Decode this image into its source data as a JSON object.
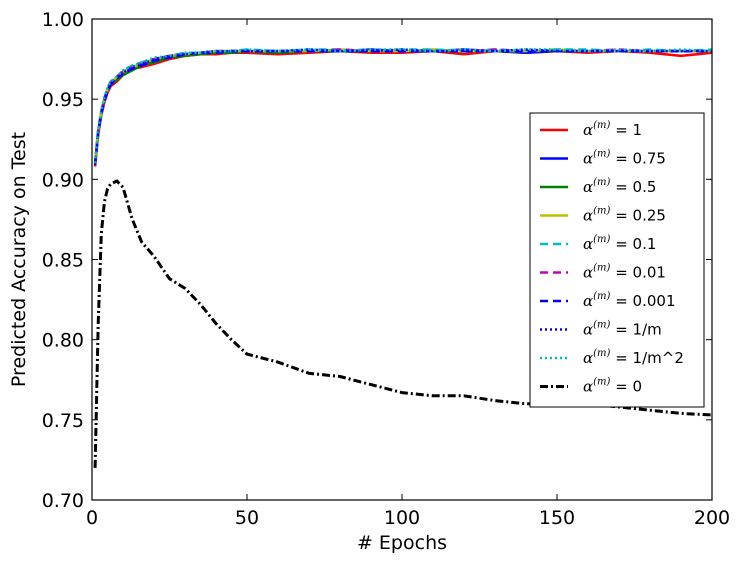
{
  "chart_data": {
    "type": "line",
    "title": "",
    "xlabel": "# Epochs",
    "ylabel": "Predicted Accuracy on Test",
    "xlim": [
      0,
      200
    ],
    "ylim": [
      0.7,
      1.0
    ],
    "xticks": [
      0,
      50,
      100,
      150,
      200
    ],
    "xtick_labels": [
      "0",
      "50",
      "100",
      "150",
      "200"
    ],
    "yticks": [
      0.7,
      0.75,
      0.8,
      0.85,
      0.9,
      0.95,
      1.0
    ],
    "ytick_labels": [
      "0.70",
      "0.75",
      "0.80",
      "0.85",
      "0.90",
      "0.95",
      "1.00"
    ],
    "grid": false,
    "legend_position": "center-right",
    "x": [
      1,
      2,
      3,
      4,
      5,
      6,
      8,
      10,
      13,
      16,
      20,
      25,
      30,
      35,
      40,
      45,
      50,
      60,
      70,
      80,
      90,
      100,
      110,
      120,
      130,
      140,
      150,
      160,
      170,
      180,
      190,
      200
    ],
    "series": [
      {
        "name": "α^(m) = 1",
        "label_pre": "α",
        "label_sup": "(m)",
        "label_post": " = 1",
        "color": "#ff0000",
        "dash": "",
        "width": 2.5,
        "values": [
          0.908,
          0.928,
          0.94,
          0.948,
          0.954,
          0.958,
          0.961,
          0.965,
          0.969,
          0.97,
          0.972,
          0.975,
          0.977,
          0.978,
          0.978,
          0.979,
          0.979,
          0.978,
          0.979,
          0.98,
          0.979,
          0.979,
          0.98,
          0.978,
          0.98,
          0.979,
          0.98,
          0.979,
          0.98,
          0.979,
          0.977,
          0.979
        ]
      },
      {
        "name": "α^(m) = 0.75",
        "label_pre": "α",
        "label_sup": "(m)",
        "label_post": " = 0.75",
        "color": "#0000ff",
        "dash": "",
        "width": 2.5,
        "values": [
          0.91,
          0.93,
          0.942,
          0.95,
          0.956,
          0.96,
          0.963,
          0.967,
          0.97,
          0.972,
          0.974,
          0.976,
          0.978,
          0.979,
          0.979,
          0.98,
          0.98,
          0.98,
          0.98,
          0.98,
          0.981,
          0.98,
          0.98,
          0.981,
          0.98,
          0.979,
          0.98,
          0.98,
          0.98,
          0.98,
          0.98,
          0.98
        ]
      },
      {
        "name": "α^(m) = 0.5",
        "label_pre": "α",
        "label_sup": "(m)",
        "label_post": " = 0.5",
        "color": "#008000",
        "dash": "",
        "width": 2.5,
        "values": [
          0.909,
          0.929,
          0.941,
          0.949,
          0.955,
          0.959,
          0.962,
          0.965,
          0.968,
          0.971,
          0.973,
          0.976,
          0.977,
          0.978,
          0.979,
          0.979,
          0.98,
          0.979,
          0.98,
          0.98,
          0.98,
          0.98,
          0.98,
          0.98,
          0.98,
          0.98,
          0.98,
          0.98,
          0.98,
          0.98,
          0.98,
          0.98
        ]
      },
      {
        "name": "α^(m) = 0.25",
        "label_pre": "α",
        "label_sup": "(m)",
        "label_post": " = 0.25",
        "color": "#bfbf00",
        "dash": "",
        "width": 2.5,
        "values": [
          0.91,
          0.93,
          0.942,
          0.95,
          0.956,
          0.96,
          0.964,
          0.967,
          0.97,
          0.972,
          0.975,
          0.977,
          0.978,
          0.979,
          0.98,
          0.98,
          0.98,
          0.98,
          0.98,
          0.981,
          0.98,
          0.98,
          0.981,
          0.98,
          0.98,
          0.98,
          0.981,
          0.98,
          0.98,
          0.98,
          0.98,
          0.98
        ]
      },
      {
        "name": "α^(m) = 0.1",
        "label_pre": "α",
        "label_sup": "(m)",
        "label_post": " = 0.1",
        "color": "#00bfbf",
        "dash": "8,5",
        "width": 2.5,
        "values": [
          0.91,
          0.931,
          0.943,
          0.951,
          0.957,
          0.961,
          0.964,
          0.968,
          0.971,
          0.973,
          0.975,
          0.977,
          0.979,
          0.979,
          0.98,
          0.98,
          0.981,
          0.98,
          0.981,
          0.981,
          0.98,
          0.981,
          0.981,
          0.98,
          0.981,
          0.98,
          0.981,
          0.981,
          0.98,
          0.981,
          0.98,
          0.981
        ]
      },
      {
        "name": "α^(m) = 0.01",
        "label_pre": "α",
        "label_sup": "(m)",
        "label_post": " = 0.01",
        "color": "#bf00bf",
        "dash": "8,5",
        "width": 2.5,
        "values": [
          0.91,
          0.93,
          0.942,
          0.95,
          0.956,
          0.96,
          0.964,
          0.967,
          0.97,
          0.972,
          0.975,
          0.977,
          0.978,
          0.979,
          0.98,
          0.98,
          0.98,
          0.98,
          0.98,
          0.981,
          0.98,
          0.98,
          0.98,
          0.98,
          0.981,
          0.98,
          0.98,
          0.98,
          0.981,
          0.98,
          0.98,
          0.98
        ]
      },
      {
        "name": "α^(m) = 0.001",
        "label_pre": "α",
        "label_sup": "(m)",
        "label_post": " = 0.001",
        "color": "#0000ff",
        "dash": "8,5",
        "width": 2.5,
        "values": [
          0.909,
          0.929,
          0.941,
          0.949,
          0.955,
          0.959,
          0.963,
          0.966,
          0.969,
          0.971,
          0.974,
          0.976,
          0.978,
          0.979,
          0.979,
          0.98,
          0.98,
          0.98,
          0.98,
          0.98,
          0.98,
          0.98,
          0.98,
          0.98,
          0.98,
          0.98,
          0.98,
          0.98,
          0.98,
          0.98,
          0.98,
          0.98
        ]
      },
      {
        "name": "α^(m) = 1/m",
        "label_pre": "α",
        "label_sup": "(m)",
        "label_post": " = 1/m",
        "color": "#0000ff",
        "dash": "2,3",
        "width": 2.5,
        "values": [
          0.91,
          0.93,
          0.942,
          0.95,
          0.956,
          0.96,
          0.963,
          0.967,
          0.97,
          0.972,
          0.975,
          0.977,
          0.978,
          0.979,
          0.98,
          0.98,
          0.98,
          0.98,
          0.981,
          0.98,
          0.98,
          0.981,
          0.98,
          0.98,
          0.98,
          0.981,
          0.98,
          0.98,
          0.98,
          0.98,
          0.98,
          0.98
        ]
      },
      {
        "name": "α^(m) = 1/m^2",
        "label_pre": "α",
        "label_sup": "(m)",
        "label_post": " = 1/m^2",
        "color": "#00bfbf",
        "dash": "2,3",
        "width": 2.5,
        "values": [
          0.91,
          0.931,
          0.943,
          0.951,
          0.957,
          0.961,
          0.964,
          0.968,
          0.971,
          0.973,
          0.976,
          0.977,
          0.979,
          0.979,
          0.98,
          0.98,
          0.981,
          0.98,
          0.981,
          0.98,
          0.981,
          0.981,
          0.98,
          0.981,
          0.98,
          0.981,
          0.981,
          0.98,
          0.981,
          0.98,
          0.981,
          0.98
        ]
      },
      {
        "name": "α^(m) = 0",
        "label_pre": "α",
        "label_sup": "(m)",
        "label_post": " = 0",
        "color": "#000000",
        "dash": "8,3,2,3",
        "width": 3,
        "values": [
          0.72,
          0.81,
          0.866,
          0.886,
          0.894,
          0.897,
          0.899,
          0.895,
          0.875,
          0.861,
          0.852,
          0.838,
          0.832,
          0.822,
          0.81,
          0.8,
          0.791,
          0.786,
          0.779,
          0.777,
          0.772,
          0.767,
          0.765,
          0.765,
          0.762,
          0.76,
          0.76,
          0.76,
          0.758,
          0.756,
          0.754,
          0.753
        ]
      }
    ]
  }
}
